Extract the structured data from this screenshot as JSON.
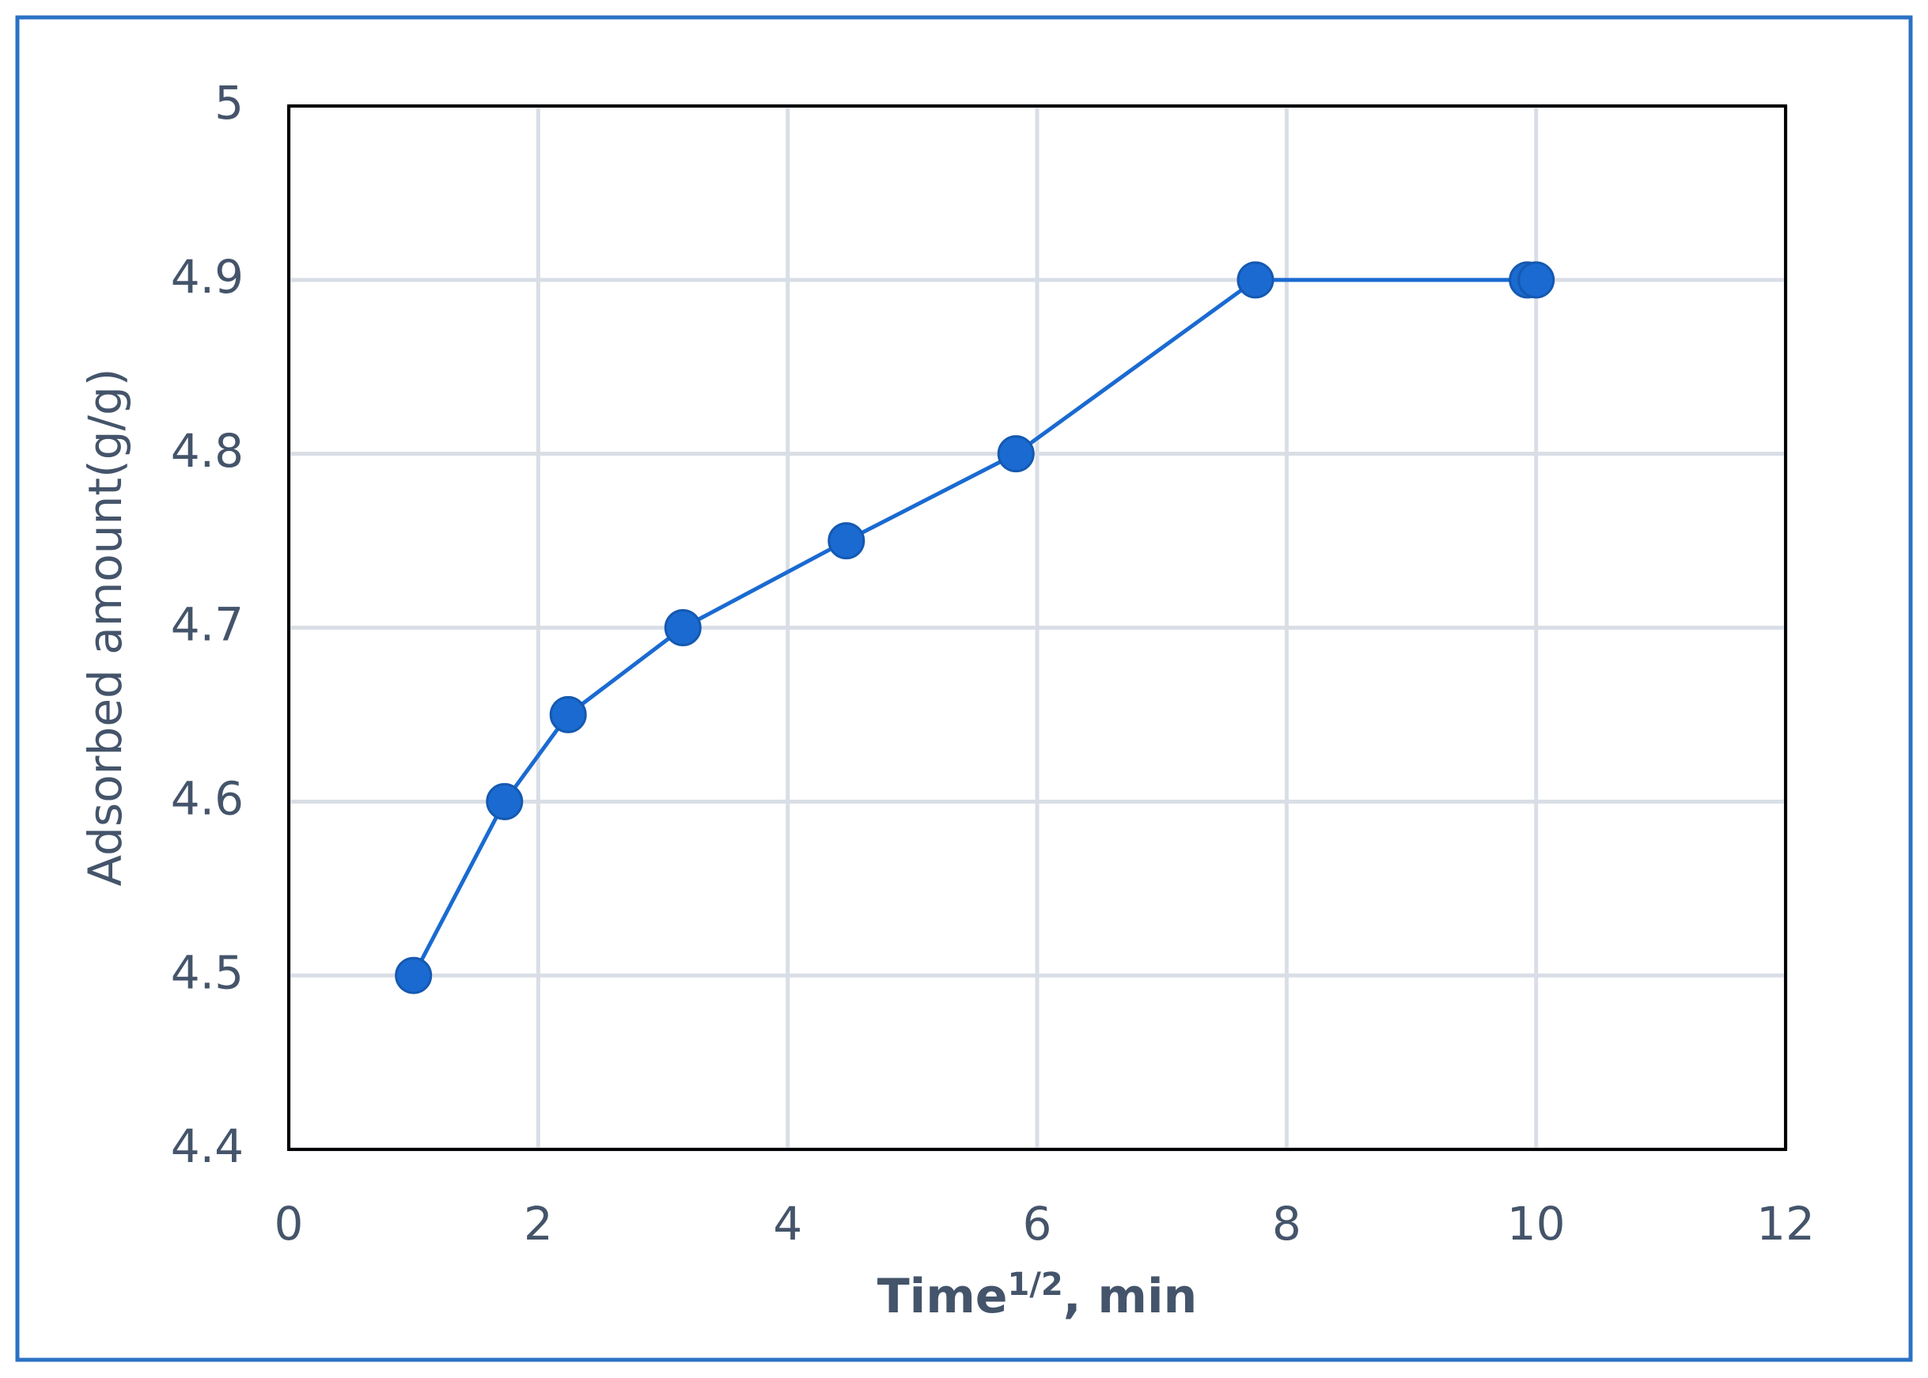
{
  "chart_data": {
    "type": "scatter",
    "x_label": [
      "Time",
      "1/2",
      ", min"
    ],
    "y_label": "Adsorbed amount(g/g)",
    "series": [
      {
        "color": "#1a6ad1",
        "x": [
          1,
          1.73,
          2.24,
          3.16,
          4.47,
          5.83,
          7.75,
          9.93,
          10
        ],
        "values": [
          4.5,
          4.6,
          4.65,
          4.7,
          4.75,
          4.8,
          4.9,
          4.9,
          4.9
        ]
      }
    ],
    "xlim": [
      0,
      12
    ],
    "xticks": [
      0,
      2,
      4,
      6,
      8,
      10,
      12
    ],
    "ylim": [
      4.4,
      5
    ],
    "yticks": [
      4.4,
      4.5,
      4.6,
      4.7,
      4.8,
      4.9,
      5
    ],
    "grid": true,
    "line": true
  }
}
